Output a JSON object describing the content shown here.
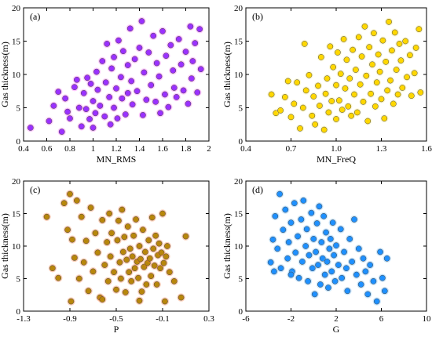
{
  "chart_data": [
    {
      "type": "scatter",
      "panel_label": "(a)",
      "xlabel": "MN_RMS",
      "ylabel": "Gas thickness(m)",
      "xlim": [
        0.4,
        2.0
      ],
      "ylim": [
        0,
        20
      ],
      "xticks": [
        "0.4",
        "0.6",
        "0.8",
        "1",
        "1.2",
        "1.4",
        "1.6",
        "1.8",
        "2"
      ],
      "xtick_values": [
        0.4,
        0.6,
        0.8,
        1.0,
        1.2,
        1.4,
        1.6,
        1.8,
        2.0
      ],
      "yticks": [
        "0",
        "5",
        "10",
        "15",
        "20"
      ],
      "ytick_values": [
        0,
        5,
        10,
        15,
        20
      ],
      "color": "#9b30ff",
      "halo_color": "#ff66ff",
      "points": [
        [
          0.46,
          2.0
        ],
        [
          0.62,
          3.0
        ],
        [
          0.66,
          5.3
        ],
        [
          0.7,
          7.4
        ],
        [
          0.73,
          1.4
        ],
        [
          0.76,
          6.4
        ],
        [
          0.78,
          4.4
        ],
        [
          0.8,
          3.4
        ],
        [
          0.84,
          8.1
        ],
        [
          0.86,
          9.2
        ],
        [
          0.88,
          5.0
        ],
        [
          0.9,
          2.2
        ],
        [
          0.92,
          7.2
        ],
        [
          0.94,
          4.8
        ],
        [
          0.95,
          9.5
        ],
        [
          0.97,
          3.3
        ],
        [
          0.98,
          8.6
        ],
        [
          1.0,
          6.0
        ],
        [
          1.0,
          2.0
        ],
        [
          1.02,
          4.2
        ],
        [
          1.03,
          10.4
        ],
        [
          1.04,
          7.7
        ],
        [
          1.06,
          5.3
        ],
        [
          1.08,
          12.0
        ],
        [
          1.1,
          3.7
        ],
        [
          1.11,
          8.8
        ],
        [
          1.12,
          14.6
        ],
        [
          1.14,
          6.6
        ],
        [
          1.15,
          2.5
        ],
        [
          1.16,
          10.9
        ],
        [
          1.18,
          5.0
        ],
        [
          1.18,
          12.6
        ],
        [
          1.2,
          7.9
        ],
        [
          1.21,
          3.4
        ],
        [
          1.22,
          15.1
        ],
        [
          1.24,
          9.6
        ],
        [
          1.25,
          6.4
        ],
        [
          1.26,
          13.5
        ],
        [
          1.28,
          4.0
        ],
        [
          1.3,
          11.4
        ],
        [
          1.3,
          7.2
        ],
        [
          1.32,
          16.9
        ],
        [
          1.33,
          9.0
        ],
        [
          1.34,
          5.5
        ],
        [
          1.36,
          12.3
        ],
        [
          1.38,
          7.5
        ],
        [
          1.4,
          14.0
        ],
        [
          1.42,
          18.0
        ],
        [
          1.43,
          3.9
        ],
        [
          1.44,
          10.3
        ],
        [
          1.46,
          6.2
        ],
        [
          1.48,
          13.3
        ],
        [
          1.5,
          8.4
        ],
        [
          1.52,
          15.8
        ],
        [
          1.54,
          5.9
        ],
        [
          1.55,
          11.7
        ],
        [
          1.57,
          9.7
        ],
        [
          1.58,
          4.2
        ],
        [
          1.6,
          16.5
        ],
        [
          1.62,
          7.0
        ],
        [
          1.63,
          12.8
        ],
        [
          1.65,
          5.1
        ],
        [
          1.67,
          14.4
        ],
        [
          1.69,
          10.6
        ],
        [
          1.7,
          8.0
        ],
        [
          1.72,
          6.6
        ],
        [
          1.74,
          15.3
        ],
        [
          1.76,
          11.5
        ],
        [
          1.78,
          7.6
        ],
        [
          1.8,
          13.4
        ],
        [
          1.82,
          5.6
        ],
        [
          1.84,
          17.2
        ],
        [
          1.85,
          9.4
        ],
        [
          1.86,
          12.0
        ],
        [
          1.88,
          14.7
        ],
        [
          1.9,
          7.3
        ],
        [
          1.92,
          16.8
        ],
        [
          1.93,
          10.8
        ]
      ]
    },
    {
      "type": "scatter",
      "panel_label": "(b)",
      "xlabel": "MN_FreQ",
      "ylabel": "Gas thickness(m)",
      "xlim": [
        0.4,
        1.6
      ],
      "ylim": [
        0,
        20
      ],
      "xticks": [
        "0.4",
        "0.7",
        "1.0",
        "1.3",
        "1.6"
      ],
      "xtick_values": [
        0.4,
        0.7,
        1.0,
        1.3,
        1.6
      ],
      "yticks": [
        "0",
        "5",
        "10",
        "15",
        "20"
      ],
      "ytick_values": [
        0,
        5,
        10,
        15,
        20
      ],
      "color": "#ffd700",
      "halo_color": "#ffee88",
      "points": [
        [
          0.57,
          7.0
        ],
        [
          0.6,
          4.2
        ],
        [
          0.63,
          4.6
        ],
        [
          0.66,
          6.6
        ],
        [
          0.68,
          9.0
        ],
        [
          0.7,
          3.6
        ],
        [
          0.72,
          5.6
        ],
        [
          0.74,
          8.8
        ],
        [
          0.76,
          1.9
        ],
        [
          0.78,
          5.0
        ],
        [
          0.79,
          14.6
        ],
        [
          0.8,
          7.6
        ],
        [
          0.82,
          9.9
        ],
        [
          0.84,
          3.8
        ],
        [
          0.85,
          6.7
        ],
        [
          0.86,
          2.5
        ],
        [
          0.88,
          8.3
        ],
        [
          0.89,
          5.3
        ],
        [
          0.9,
          12.6
        ],
        [
          0.92,
          1.7
        ],
        [
          0.93,
          7.1
        ],
        [
          0.94,
          9.4
        ],
        [
          0.95,
          4.3
        ],
        [
          0.96,
          14.2
        ],
        [
          0.97,
          6.0
        ],
        [
          0.98,
          11.1
        ],
        [
          1.0,
          3.3
        ],
        [
          1.0,
          8.4
        ],
        [
          1.01,
          13.3
        ],
        [
          1.02,
          6.1
        ],
        [
          1.03,
          10.1
        ],
        [
          1.04,
          4.7
        ],
        [
          1.05,
          15.3
        ],
        [
          1.06,
          7.9
        ],
        [
          1.07,
          12.2
        ],
        [
          1.08,
          5.2
        ],
        [
          1.09,
          9.4
        ],
        [
          1.1,
          3.8
        ],
        [
          1.11,
          13.7
        ],
        [
          1.12,
          7.0
        ],
        [
          1.13,
          10.7
        ],
        [
          1.14,
          4.3
        ],
        [
          1.15,
          15.6
        ],
        [
          1.16,
          8.5
        ],
        [
          1.17,
          12.7
        ],
        [
          1.18,
          5.9
        ],
        [
          1.19,
          17.2
        ],
        [
          1.2,
          9.8
        ],
        [
          1.21,
          3.0
        ],
        [
          1.22,
          14.1
        ],
        [
          1.23,
          7.1
        ],
        [
          1.24,
          11.5
        ],
        [
          1.25,
          16.2
        ],
        [
          1.26,
          5.2
        ],
        [
          1.27,
          8.8
        ],
        [
          1.28,
          13.0
        ],
        [
          1.29,
          10.4
        ],
        [
          1.3,
          6.3
        ],
        [
          1.31,
          15.1
        ],
        [
          1.32,
          3.4
        ],
        [
          1.33,
          11.9
        ],
        [
          1.34,
          7.6
        ],
        [
          1.35,
          17.9
        ],
        [
          1.36,
          9.1
        ],
        [
          1.37,
          13.6
        ],
        [
          1.38,
          5.6
        ],
        [
          1.39,
          16.3
        ],
        [
          1.4,
          10.7
        ],
        [
          1.41,
          7.0
        ],
        [
          1.42,
          14.6
        ],
        [
          1.43,
          12.1
        ],
        [
          1.44,
          8.0
        ],
        [
          1.46,
          15.0
        ],
        [
          1.47,
          9.6
        ],
        [
          1.49,
          12.9
        ],
        [
          1.5,
          6.8
        ],
        [
          1.52,
          10.2
        ],
        [
          1.53,
          14.0
        ],
        [
          1.55,
          16.8
        ],
        [
          1.56,
          7.3
        ]
      ]
    },
    {
      "type": "scatter",
      "panel_label": "(c)",
      "xlabel": "P",
      "ylabel": "Gas thickness(m)",
      "xlim": [
        -1.3,
        0.3
      ],
      "ylim": [
        0,
        20
      ],
      "xticks": [
        "-1.3",
        "-0.9",
        "-0.5",
        "-0.1",
        "0.3"
      ],
      "xtick_values": [
        -1.3,
        -0.9,
        -0.5,
        -0.1,
        0.3
      ],
      "yticks": [
        "0",
        "5",
        "10",
        "15",
        "20"
      ],
      "ytick_values": [
        0,
        5,
        10,
        15,
        20
      ],
      "color": "#b8860b",
      "halo_color": "#ff7b3a",
      "points": [
        [
          -1.1,
          14.5
        ],
        [
          -1.05,
          6.6
        ],
        [
          -1.0,
          5.1
        ],
        [
          -0.95,
          16.6
        ],
        [
          -0.92,
          12.5
        ],
        [
          -0.9,
          18.0
        ],
        [
          -0.89,
          1.5
        ],
        [
          -0.88,
          11.0
        ],
        [
          -0.86,
          8.2
        ],
        [
          -0.84,
          17.0
        ],
        [
          -0.82,
          5.0
        ],
        [
          -0.8,
          14.5
        ],
        [
          -0.78,
          7.5
        ],
        [
          -0.76,
          10.8
        ],
        [
          -0.74,
          3.1
        ],
        [
          -0.72,
          15.9
        ],
        [
          -0.7,
          6.1
        ],
        [
          -0.68,
          12.0
        ],
        [
          -0.66,
          9.0
        ],
        [
          -0.64,
          2.1
        ],
        [
          -0.62,
          14.0
        ],
        [
          -0.6,
          7.1
        ],
        [
          -0.58,
          10.6
        ],
        [
          -0.57,
          4.6
        ],
        [
          -0.56,
          15.0
        ],
        [
          -0.55,
          8.4
        ],
        [
          -0.54,
          12.0
        ],
        [
          -0.52,
          6.0
        ],
        [
          -0.5,
          3.3
        ],
        [
          -0.49,
          10.9
        ],
        [
          -0.48,
          13.9
        ],
        [
          -0.47,
          7.5
        ],
        [
          -0.46,
          5.0
        ],
        [
          -0.45,
          15.6
        ],
        [
          -0.44,
          9.1
        ],
        [
          -0.43,
          11.4
        ],
        [
          -0.42,
          2.9
        ],
        [
          -0.41,
          7.9
        ],
        [
          -0.4,
          13.0
        ],
        [
          -0.39,
          6.0
        ],
        [
          -0.38,
          9.6
        ],
        [
          -0.37,
          4.6
        ],
        [
          -0.36,
          8.4
        ],
        [
          -0.35,
          11.6
        ],
        [
          -0.34,
          6.6
        ],
        [
          -0.33,
          14.1
        ],
        [
          -0.32,
          7.6
        ],
        [
          -0.31,
          5.1
        ],
        [
          -0.3,
          10.0
        ],
        [
          -0.29,
          8.0
        ],
        [
          -0.28,
          3.0
        ],
        [
          -0.27,
          12.5
        ],
        [
          -0.26,
          6.8
        ],
        [
          -0.25,
          9.1
        ],
        [
          -0.24,
          4.1
        ],
        [
          -0.23,
          7.4
        ],
        [
          -0.22,
          10.9
        ],
        [
          -0.21,
          8.1
        ],
        [
          -0.2,
          5.4
        ],
        [
          -0.19,
          14.4
        ],
        [
          -0.18,
          9.6
        ],
        [
          -0.17,
          7.0
        ],
        [
          -0.16,
          11.6
        ],
        [
          -0.15,
          4.1
        ],
        [
          -0.14,
          8.6
        ],
        [
          -0.13,
          10.4
        ],
        [
          -0.12,
          6.6
        ],
        [
          -0.11,
          9.0
        ],
        [
          -0.1,
          15.0
        ],
        [
          -0.09,
          7.4
        ],
        [
          -0.08,
          1.5
        ],
        [
          -0.07,
          8.4
        ],
        [
          -0.06,
          10.0
        ],
        [
          -0.04,
          6.0
        ],
        [
          0.0,
          4.6
        ],
        [
          0.06,
          2.1
        ],
        [
          0.1,
          11.5
        ],
        [
          -0.62,
          1.8
        ],
        [
          -0.3,
          1.6
        ]
      ]
    },
    {
      "type": "scatter",
      "panel_label": "(d)",
      "xlabel": "G",
      "ylabel": "Gas thickness(m)",
      "xlim": [
        -6,
        10
      ],
      "ylim": [
        0,
        20
      ],
      "xticks": [
        "-6",
        "-2",
        "2",
        "6",
        "10"
      ],
      "xtick_values": [
        -6,
        -2,
        2,
        6,
        10
      ],
      "yticks": [
        "0",
        "5",
        "10",
        "15",
        "20"
      ],
      "ytick_values": [
        0,
        5,
        10,
        15,
        20
      ],
      "color": "#1e90ff",
      "halo_color": "#66bbff",
      "points": [
        [
          -3.8,
          7.5
        ],
        [
          -3.6,
          11.0
        ],
        [
          -3.4,
          14.6
        ],
        [
          -3.2,
          9.6
        ],
        [
          -3.0,
          18.0
        ],
        [
          -2.9,
          6.6
        ],
        [
          -2.7,
          12.5
        ],
        [
          -2.5,
          15.6
        ],
        [
          -2.3,
          8.1
        ],
        [
          -2.2,
          10.6
        ],
        [
          -2.0,
          13.6
        ],
        [
          -1.9,
          6.1
        ],
        [
          -1.7,
          16.6
        ],
        [
          -1.6,
          9.0
        ],
        [
          -1.4,
          11.5
        ],
        [
          -1.3,
          5.1
        ],
        [
          -1.1,
          14.1
        ],
        [
          -1.0,
          7.6
        ],
        [
          -0.9,
          17.0
        ],
        [
          -0.7,
          10.0
        ],
        [
          -0.6,
          12.6
        ],
        [
          -0.5,
          4.6
        ],
        [
          -0.4,
          8.6
        ],
        [
          -0.2,
          15.1
        ],
        [
          -0.1,
          6.6
        ],
        [
          0.0,
          11.1
        ],
        [
          0.1,
          2.6
        ],
        [
          0.2,
          9.1
        ],
        [
          0.3,
          13.5
        ],
        [
          0.4,
          7.1
        ],
        [
          0.5,
          16.1
        ],
        [
          0.6,
          4.1
        ],
        [
          0.7,
          10.6
        ],
        [
          0.8,
          8.1
        ],
        [
          0.9,
          14.6
        ],
        [
          1.0,
          5.6
        ],
        [
          1.1,
          12.1
        ],
        [
          1.2,
          7.6
        ],
        [
          1.3,
          3.6
        ],
        [
          1.4,
          9.6
        ],
        [
          1.5,
          11.1
        ],
        [
          1.6,
          6.1
        ],
        [
          1.7,
          13.6
        ],
        [
          1.8,
          8.6
        ],
        [
          1.9,
          4.6
        ],
        [
          2.0,
          10.1
        ],
        [
          2.2,
          7.1
        ],
        [
          2.4,
          12.6
        ],
        [
          2.5,
          5.1
        ],
        [
          2.7,
          9.1
        ],
        [
          2.9,
          6.6
        ],
        [
          3.0,
          3.1
        ],
        [
          3.2,
          11.1
        ],
        [
          3.4,
          7.6
        ],
        [
          3.6,
          14.1
        ],
        [
          3.8,
          5.6
        ],
        [
          4.0,
          9.6
        ],
        [
          4.2,
          4.1
        ],
        [
          4.4,
          8.1
        ],
        [
          4.6,
          6.1
        ],
        [
          4.8,
          2.6
        ],
        [
          5.0,
          7.1
        ],
        [
          5.3,
          4.6
        ],
        [
          5.6,
          1.5
        ],
        [
          5.9,
          9.1
        ],
        [
          6.1,
          5.1
        ],
        [
          6.3,
          3.1
        ],
        [
          6.5,
          8.1
        ],
        [
          -3.5,
          6.1
        ],
        [
          -2.0,
          5.6
        ]
      ]
    }
  ]
}
